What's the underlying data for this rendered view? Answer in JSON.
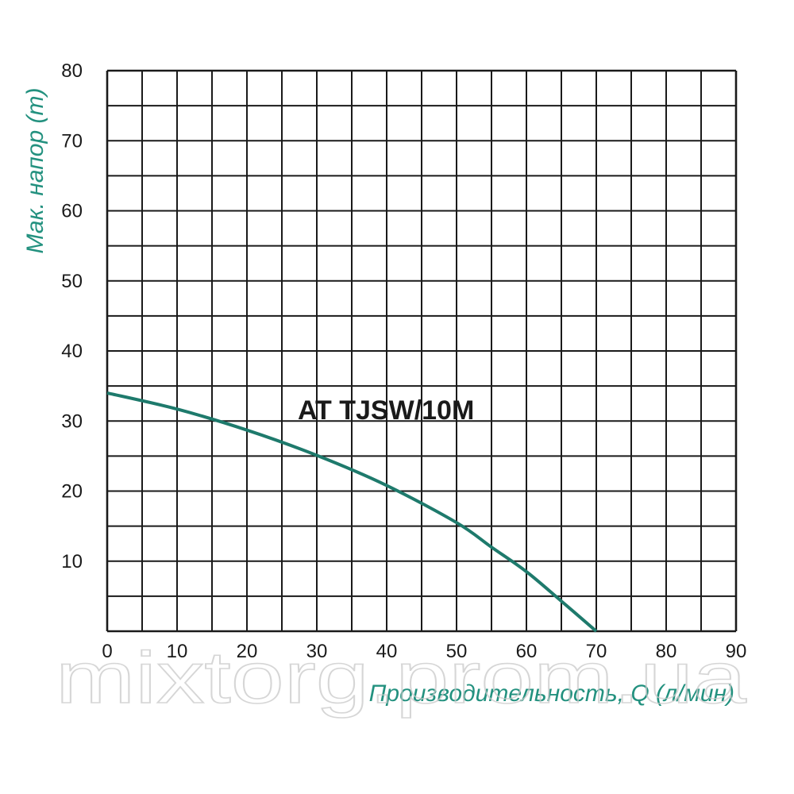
{
  "chart_data": {
    "type": "line",
    "xlabel": "Производительность, Q (л/мин)",
    "ylabel": "Мак. напор (m)",
    "xlim": [
      0,
      90
    ],
    "ylim": [
      0,
      80
    ],
    "x_ticks": [
      "0",
      "10",
      "20",
      "30",
      "40",
      "50",
      "60",
      "70",
      "80",
      "90"
    ],
    "y_ticks": [
      "10",
      "20",
      "30",
      "40",
      "50",
      "60",
      "70",
      "80"
    ],
    "x_minor_step": 5,
    "y_minor_step": 5,
    "grid": true,
    "series": [
      {
        "name": "AT TJSW/10M",
        "x": [
          0,
          10,
          20,
          30,
          40,
          50,
          55,
          60,
          65,
          70
        ],
        "y": [
          34,
          31.7,
          28.7,
          25.1,
          20.8,
          15.5,
          12,
          8.5,
          4.3,
          0
        ]
      }
    ]
  },
  "colors": {
    "curve": "#1e7a6c",
    "axis_title": "#23917f",
    "grid": "#1a1a1a"
  },
  "watermark": "mixtorg.prom.ua"
}
